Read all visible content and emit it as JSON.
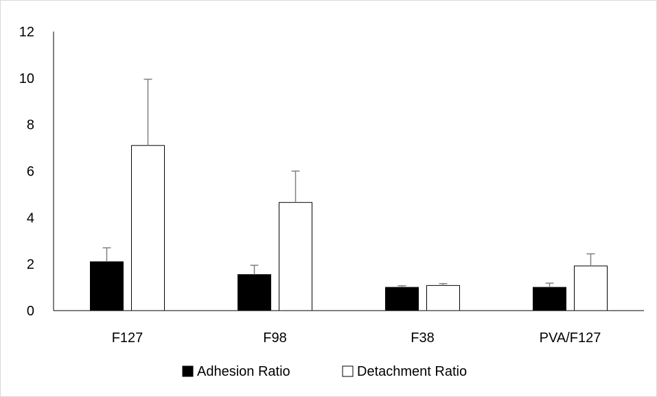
{
  "chart_data": {
    "type": "bar",
    "categories": [
      "F127",
      "F98",
      "F38",
      "PVA/F127"
    ],
    "series": [
      {
        "name": "Adhesion Ratio",
        "values": [
          2.1,
          1.55,
          1.0,
          1.0
        ],
        "error_upper": [
          0.6,
          0.4,
          0.07,
          0.18
        ],
        "fill": "#000000"
      },
      {
        "name": "Detachment Ratio",
        "values": [
          7.1,
          4.65,
          1.08,
          1.92
        ],
        "error_upper": [
          2.85,
          1.35,
          0.08,
          0.52
        ],
        "fill": "#ffffff"
      }
    ],
    "ylim": [
      0,
      12
    ],
    "yticks": [
      "0",
      "2",
      "4",
      "6",
      "8",
      "10",
      "12"
    ],
    "title": "",
    "xlabel": "",
    "ylabel": "",
    "grid": false,
    "legend_position": "bottom",
    "error_bar_color": "#7f7f7f",
    "axis_color": "#000000",
    "frame_color": "#d9d9d9"
  }
}
